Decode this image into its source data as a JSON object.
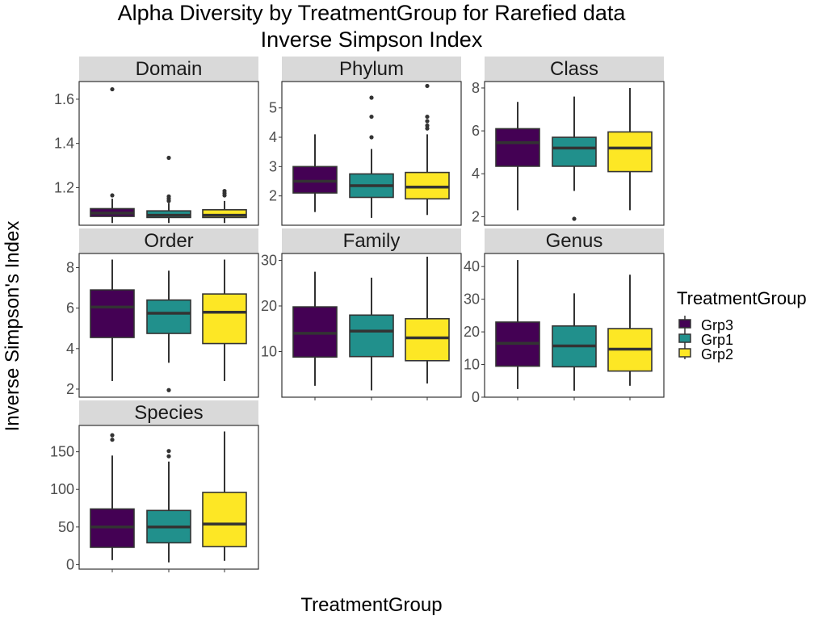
{
  "chart_data": {
    "type": "boxplot",
    "title": "Alpha Diversity by TreatmentGroup for Rarefied data",
    "subtitle": "Inverse Simpson Index",
    "xlabel": "TreatmentGroup",
    "ylabel": "Inverse Simpson's Index",
    "groups": [
      "Grp3",
      "Grp1",
      "Grp2"
    ],
    "legend": {
      "title": "TreatmentGroup",
      "position": "right",
      "entries": [
        {
          "label": "Grp3",
          "color": "#440154"
        },
        {
          "label": "Grp1",
          "color": "#21908C"
        },
        {
          "label": "Grp2",
          "color": "#FDE725"
        }
      ]
    },
    "facets": [
      {
        "name": "Domain",
        "ylim": [
          1.03,
          1.68
        ],
        "yticks": [
          1.2,
          1.4,
          1.6
        ],
        "tick_labels": [
          "1.2",
          "1.4",
          "1.6"
        ],
        "boxes": [
          {
            "group": "Grp3",
            "min": 1.04,
            "q1": 1.07,
            "median": 1.085,
            "q3": 1.105,
            "max": 1.15,
            "outliers": [
              1.165,
              1.645
            ]
          },
          {
            "group": "Grp1",
            "min": 1.04,
            "q1": 1.065,
            "median": 1.075,
            "q3": 1.095,
            "max": 1.13,
            "outliers": [
              1.14,
              1.15,
              1.16,
              1.335
            ]
          },
          {
            "group": "Grp2",
            "min": 1.04,
            "q1": 1.065,
            "median": 1.075,
            "q3": 1.1,
            "max": 1.14,
            "outliers": [
              1.165,
              1.175,
              1.185
            ]
          }
        ]
      },
      {
        "name": "Phylum",
        "ylim": [
          1.0,
          5.9
        ],
        "yticks": [
          2,
          3,
          4,
          5
        ],
        "tick_labels": [
          "2",
          "3",
          "4",
          "5"
        ],
        "boxes": [
          {
            "group": "Grp3",
            "min": 1.45,
            "q1": 2.1,
            "median": 2.5,
            "q3": 3.0,
            "max": 4.1,
            "outliers": []
          },
          {
            "group": "Grp1",
            "min": 1.25,
            "q1": 1.95,
            "median": 2.35,
            "q3": 2.75,
            "max": 3.6,
            "outliers": [
              4.0,
              4.7,
              5.35
            ]
          },
          {
            "group": "Grp2",
            "min": 1.35,
            "q1": 1.9,
            "median": 2.3,
            "q3": 2.8,
            "max": 4.1,
            "outliers": [
              4.3,
              4.4,
              4.55,
              4.7,
              5.75
            ]
          }
        ]
      },
      {
        "name": "Class",
        "ylim": [
          1.6,
          8.3
        ],
        "yticks": [
          2,
          4,
          6,
          8
        ],
        "tick_labels": [
          "2",
          "4",
          "6",
          "8"
        ],
        "boxes": [
          {
            "group": "Grp3",
            "min": 2.3,
            "q1": 4.35,
            "median": 5.45,
            "q3": 6.1,
            "max": 7.35,
            "outliers": []
          },
          {
            "group": "Grp1",
            "min": 3.2,
            "q1": 4.35,
            "median": 5.2,
            "q3": 5.7,
            "max": 7.6,
            "outliers": [
              1.9
            ]
          },
          {
            "group": "Grp2",
            "min": 2.3,
            "q1": 4.1,
            "median": 5.2,
            "q3": 5.95,
            "max": 8.0,
            "outliers": []
          }
        ]
      },
      {
        "name": "Order",
        "ylim": [
          1.6,
          8.7
        ],
        "yticks": [
          2,
          4,
          6,
          8
        ],
        "tick_labels": [
          "2",
          "4",
          "6",
          "8"
        ],
        "boxes": [
          {
            "group": "Grp3",
            "min": 2.4,
            "q1": 4.55,
            "median": 6.05,
            "q3": 6.9,
            "max": 8.4,
            "outliers": []
          },
          {
            "group": "Grp1",
            "min": 3.3,
            "q1": 4.75,
            "median": 5.75,
            "q3": 6.4,
            "max": 7.85,
            "outliers": [
              1.95
            ]
          },
          {
            "group": "Grp2",
            "min": 2.4,
            "q1": 4.25,
            "median": 5.8,
            "q3": 6.7,
            "max": 8.4,
            "outliers": []
          }
        ]
      },
      {
        "name": "Family",
        "ylim": [
          0.0,
          31.5
        ],
        "yticks": [
          10,
          20,
          30
        ],
        "tick_labels": [
          "10",
          "20",
          "30"
        ],
        "boxes": [
          {
            "group": "Grp3",
            "min": 2.5,
            "q1": 8.8,
            "median": 14.0,
            "q3": 19.8,
            "max": 27.5,
            "outliers": []
          },
          {
            "group": "Grp1",
            "min": 1.5,
            "q1": 8.9,
            "median": 14.5,
            "q3": 18.0,
            "max": 26.2,
            "outliers": []
          },
          {
            "group": "Grp2",
            "min": 3.0,
            "q1": 8.0,
            "median": 13.0,
            "q3": 17.2,
            "max": 30.8,
            "outliers": []
          }
        ]
      },
      {
        "name": "Genus",
        "ylim": [
          0,
          44
        ],
        "yticks": [
          0,
          10,
          20,
          30,
          40
        ],
        "tick_labels": [
          "0",
          "10",
          "20",
          "30",
          "40"
        ],
        "boxes": [
          {
            "group": "Grp3",
            "min": 2.5,
            "q1": 9.5,
            "median": 16.5,
            "q3": 23.0,
            "max": 42.0,
            "outliers": []
          },
          {
            "group": "Grp1",
            "min": 2.0,
            "q1": 9.3,
            "median": 15.7,
            "q3": 21.8,
            "max": 31.8,
            "outliers": []
          },
          {
            "group": "Grp2",
            "min": 3.5,
            "q1": 8.0,
            "median": 14.7,
            "q3": 21.0,
            "max": 37.5,
            "outliers": []
          }
        ]
      },
      {
        "name": "Species",
        "ylim": [
          -6,
          185
        ],
        "yticks": [
          0,
          50,
          100,
          150
        ],
        "tick_labels": [
          "0",
          "50",
          "100",
          "150"
        ],
        "boxes": [
          {
            "group": "Grp3",
            "min": 6,
            "q1": 23,
            "median": 50,
            "q3": 74,
            "max": 145,
            "outliers": [
              166,
              172
            ]
          },
          {
            "group": "Grp1",
            "min": 3,
            "q1": 29,
            "median": 50,
            "q3": 72,
            "max": 137,
            "outliers": [
              144,
              151
            ]
          },
          {
            "group": "Grp2",
            "min": 5,
            "q1": 24,
            "median": 54,
            "q3": 96,
            "max": 177,
            "outliers": []
          }
        ]
      }
    ]
  }
}
